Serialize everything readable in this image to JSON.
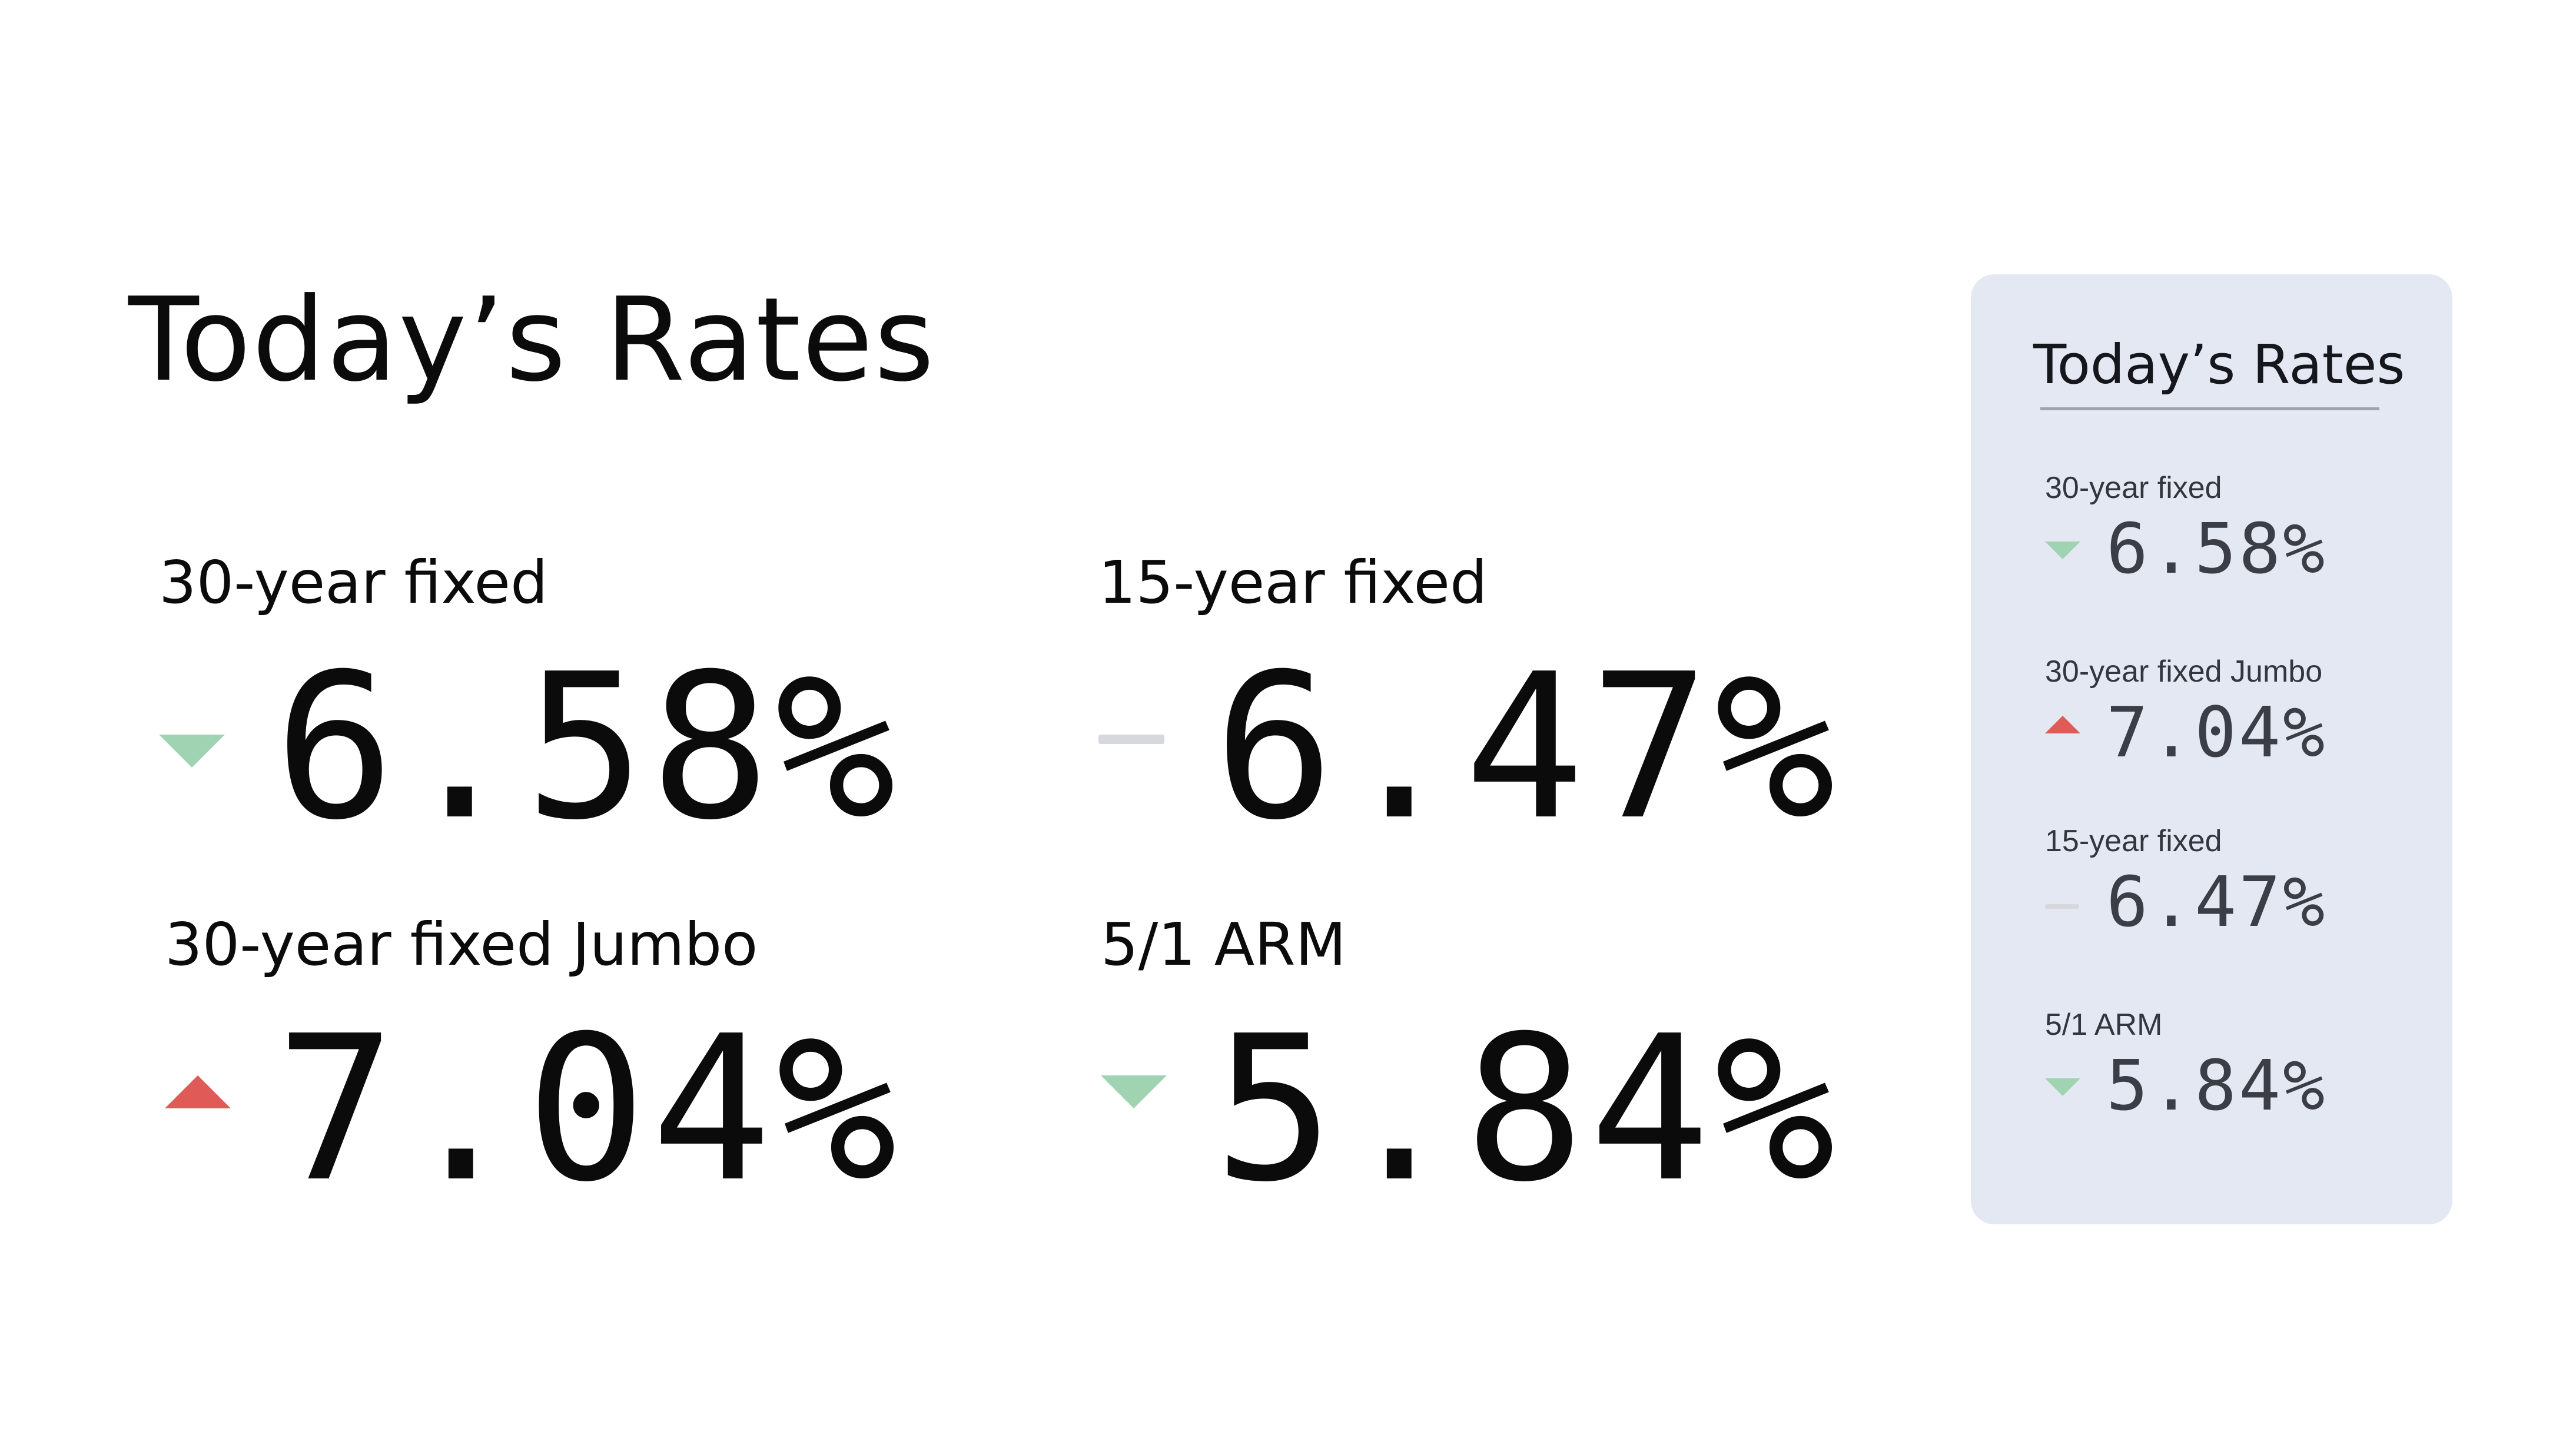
{
  "main": {
    "title": "Today’s Rates",
    "rates": [
      {
        "label": "30-year fixed",
        "value": "6.58%",
        "trend": "down"
      },
      {
        "label": "15-year fixed",
        "value": "6.47%",
        "trend": "flat"
      },
      {
        "label": "30-year fixed Jumbo",
        "value": "7.04%",
        "trend": "up"
      },
      {
        "label": "5/1 ARM",
        "value": "5.84%",
        "trend": "down"
      }
    ]
  },
  "card": {
    "title": "Today’s Rates",
    "rates": [
      {
        "label": "30-year fixed",
        "value": "6.58%",
        "trend": "down"
      },
      {
        "label": "30-year fixed Jumbo",
        "value": "7.04%",
        "trend": "up"
      },
      {
        "label": "15-year fixed",
        "value": "6.47%",
        "trend": "flat"
      },
      {
        "label": "5/1 ARM",
        "value": "5.84%",
        "trend": "down"
      }
    ]
  },
  "colors": {
    "down": "#9fd3b2",
    "up": "#e05a57",
    "flat": "#d6d8de",
    "card_background": "#e4e8f2"
  },
  "icons": {
    "down": "triangle-down-icon",
    "up": "triangle-up-icon",
    "flat": "dash-icon"
  }
}
